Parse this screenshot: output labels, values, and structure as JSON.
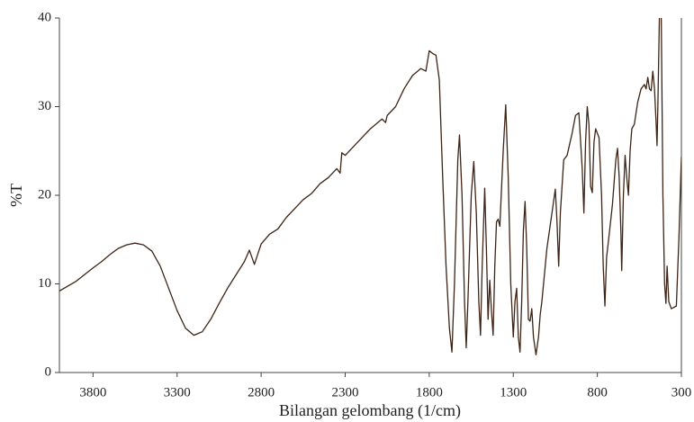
{
  "chart_data": {
    "type": "line",
    "x_label": "Bilangan gelombang (1/cm)",
    "y_label": "%T",
    "xlim": [
      4000,
      300
    ],
    "xticks": [
      3800,
      3300,
      2800,
      2300,
      1800,
      1300,
      800,
      300
    ],
    "ylim": [
      0,
      40
    ],
    "yticks": [
      0,
      10,
      20,
      30,
      40
    ],
    "x": [
      4000,
      3900,
      3800,
      3750,
      3700,
      3650,
      3600,
      3550,
      3500,
      3450,
      3400,
      3350,
      3300,
      3250,
      3200,
      3150,
      3100,
      3050,
      3000,
      2950,
      2900,
      2870,
      2840,
      2800,
      2750,
      2700,
      2650,
      2600,
      2550,
      2500,
      2450,
      2400,
      2350,
      2330,
      2320,
      2300,
      2250,
      2200,
      2150,
      2100,
      2080,
      2060,
      2050,
      2000,
      1950,
      1900,
      1850,
      1820,
      1800,
      1780,
      1760,
      1740,
      1720,
      1700,
      1680,
      1665,
      1650,
      1630,
      1620,
      1605,
      1590,
      1580,
      1570,
      1550,
      1535,
      1520,
      1505,
      1495,
      1485,
      1470,
      1460,
      1450,
      1440,
      1430,
      1420,
      1410,
      1400,
      1390,
      1380,
      1360,
      1345,
      1330,
      1315,
      1300,
      1290,
      1280,
      1270,
      1260,
      1250,
      1240,
      1230,
      1220,
      1210,
      1200,
      1190,
      1180,
      1165,
      1150,
      1140,
      1130,
      1100,
      1070,
      1050,
      1040,
      1030,
      1020,
      1000,
      980,
      950,
      930,
      910,
      890,
      880,
      870,
      860,
      850,
      840,
      830,
      820,
      810,
      790,
      775,
      765,
      755,
      745,
      730,
      710,
      690,
      680,
      670,
      660,
      655,
      645,
      635,
      625,
      615,
      605,
      595,
      580,
      560,
      540,
      520,
      510,
      500,
      490,
      480,
      470,
      460,
      450,
      445,
      440,
      430,
      420,
      410,
      400,
      392,
      385,
      375,
      360,
      330,
      315,
      300
    ],
    "series": [
      {
        "color": "#3d2416",
        "values": [
          9.2,
          10.3,
          11.8,
          12.5,
          13.3,
          14.0,
          14.4,
          14.6,
          14.4,
          13.7,
          12.0,
          9.5,
          7.0,
          5.0,
          4.2,
          4.6,
          6.0,
          7.8,
          9.5,
          11.0,
          12.5,
          13.8,
          12.2,
          14.5,
          15.6,
          16.2,
          17.5,
          18.5,
          19.5,
          20.2,
          21.3,
          22.0,
          23.0,
          22.5,
          24.8,
          24.5,
          25.5,
          26.5,
          27.5,
          28.3,
          28.6,
          28.2,
          29.0,
          30.0,
          32.0,
          33.5,
          34.3,
          34.0,
          36.3,
          36.0,
          35.8,
          33,
          22,
          12,
          5,
          2.3,
          10,
          24,
          26.8,
          20,
          8,
          2.8,
          8,
          20,
          23.8,
          18,
          8,
          4.2,
          12,
          20.8,
          14,
          6,
          10.4,
          7,
          4.2,
          12,
          17,
          17.3,
          16.5,
          25,
          30.2,
          22,
          10,
          4,
          8,
          9.5,
          4,
          2.3,
          8,
          16,
          19.3,
          14,
          6,
          5.8,
          7.2,
          4,
          2,
          4,
          6.5,
          8,
          14,
          18,
          20.7,
          17,
          12,
          18,
          24,
          24.5,
          27,
          29,
          29.3,
          23,
          18,
          26,
          30,
          28,
          21,
          20.3,
          26,
          27.5,
          26.5,
          20,
          12,
          7.5,
          13,
          15.5,
          19,
          24,
          25.3,
          22,
          16,
          11.5,
          20,
          24.5,
          22,
          20,
          25,
          27.5,
          28,
          30.5,
          32,
          32.5,
          32,
          33.3,
          32,
          31.8,
          34,
          32,
          28,
          25.6,
          30,
          41,
          40.5,
          20,
          10,
          7.8,
          12,
          8,
          7.2,
          7.5,
          15,
          24.3
        ]
      }
    ]
  }
}
